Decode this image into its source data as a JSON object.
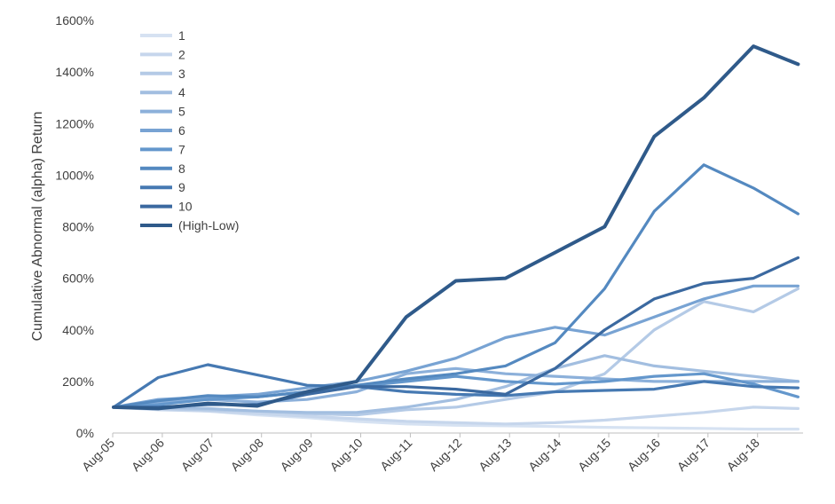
{
  "chart_data": {
    "type": "line",
    "title": "",
    "xlabel": "",
    "ylabel": "Cumulative Abnormal (alpha) Return",
    "x_tick_labels": [
      "Aug-05",
      "Aug-06",
      "Aug-07",
      "Aug-08",
      "Aug-09",
      "Aug-10",
      "Aug-11",
      "Aug-12",
      "Aug-13",
      "Aug-14",
      "Aug-15",
      "Aug-16",
      "Aug-17",
      "Aug-18"
    ],
    "y_tick_labels": [
      "0%",
      "200%",
      "400%",
      "600%",
      "800%",
      "1000%",
      "1200%",
      "1400%",
      "1600%"
    ],
    "ylim": [
      0,
      1600
    ],
    "xlim": [
      2005.583,
      2019.5
    ],
    "grid": false,
    "legend_position": "top-left",
    "series": [
      {
        "name": "1",
        "color": "#d6e2f2",
        "points": [
          [
            2005.6,
            100
          ],
          [
            2006.5,
            95
          ],
          [
            2007.5,
            85
          ],
          [
            2008.5,
            70
          ],
          [
            2009.5,
            60
          ],
          [
            2010.5,
            45
          ],
          [
            2011.5,
            35
          ],
          [
            2012.5,
            30
          ],
          [
            2013.5,
            28
          ],
          [
            2014.5,
            25
          ],
          [
            2015.5,
            22
          ],
          [
            2016.5,
            20
          ],
          [
            2017.5,
            18
          ],
          [
            2018.5,
            15
          ],
          [
            2019.4,
            15
          ]
        ]
      },
      {
        "name": "2",
        "color": "#c6d6ec",
        "points": [
          [
            2005.6,
            100
          ],
          [
            2006.5,
            90
          ],
          [
            2007.5,
            85
          ],
          [
            2008.5,
            75
          ],
          [
            2009.5,
            65
          ],
          [
            2010.5,
            55
          ],
          [
            2011.5,
            45
          ],
          [
            2012.5,
            40
          ],
          [
            2013.5,
            35
          ],
          [
            2014.5,
            40
          ],
          [
            2015.5,
            50
          ],
          [
            2016.5,
            65
          ],
          [
            2017.5,
            80
          ],
          [
            2018.5,
            100
          ],
          [
            2019.4,
            95
          ]
        ]
      },
      {
        "name": "3",
        "color": "#b4cae6",
        "points": [
          [
            2005.6,
            100
          ],
          [
            2006.5,
            95
          ],
          [
            2007.5,
            90
          ],
          [
            2008.5,
            85
          ],
          [
            2009.5,
            75
          ],
          [
            2010.5,
            70
          ],
          [
            2011.5,
            90
          ],
          [
            2012.5,
            100
          ],
          [
            2013.5,
            130
          ],
          [
            2014.5,
            160
          ],
          [
            2015.5,
            230
          ],
          [
            2016.5,
            400
          ],
          [
            2017.5,
            510
          ],
          [
            2018.5,
            470
          ],
          [
            2019.4,
            560
          ]
        ]
      },
      {
        "name": "4",
        "color": "#a2bee0",
        "points": [
          [
            2005.6,
            100
          ],
          [
            2006.5,
            100
          ],
          [
            2007.5,
            95
          ],
          [
            2008.5,
            85
          ],
          [
            2009.5,
            80
          ],
          [
            2010.5,
            80
          ],
          [
            2011.5,
            100
          ],
          [
            2012.5,
            130
          ],
          [
            2013.5,
            180
          ],
          [
            2014.5,
            250
          ],
          [
            2015.5,
            300
          ],
          [
            2016.5,
            260
          ],
          [
            2017.5,
            240
          ],
          [
            2018.5,
            220
          ],
          [
            2019.4,
            200
          ]
        ]
      },
      {
        "name": "5",
        "color": "#8cb0da",
        "points": [
          [
            2005.6,
            100
          ],
          [
            2006.5,
            120
          ],
          [
            2007.5,
            130
          ],
          [
            2008.5,
            120
          ],
          [
            2009.5,
            130
          ],
          [
            2010.5,
            160
          ],
          [
            2011.5,
            230
          ],
          [
            2012.5,
            250
          ],
          [
            2013.5,
            230
          ],
          [
            2014.5,
            220
          ],
          [
            2015.5,
            210
          ],
          [
            2016.5,
            200
          ],
          [
            2017.5,
            200
          ],
          [
            2018.5,
            200
          ],
          [
            2019.4,
            200
          ]
        ]
      },
      {
        "name": "6",
        "color": "#78a3d3",
        "points": [
          [
            2005.6,
            100
          ],
          [
            2006.5,
            130
          ],
          [
            2007.5,
            140
          ],
          [
            2008.5,
            150
          ],
          [
            2009.5,
            175
          ],
          [
            2010.5,
            200
          ],
          [
            2011.5,
            240
          ],
          [
            2012.5,
            290
          ],
          [
            2013.5,
            370
          ],
          [
            2014.5,
            410
          ],
          [
            2015.5,
            380
          ],
          [
            2016.5,
            450
          ],
          [
            2017.5,
            520
          ],
          [
            2018.5,
            570
          ],
          [
            2019.4,
            570
          ]
        ]
      },
      {
        "name": "7",
        "color": "#6497cc",
        "points": [
          [
            2005.6,
            100
          ],
          [
            2006.5,
            110
          ],
          [
            2007.5,
            130
          ],
          [
            2008.5,
            140
          ],
          [
            2009.5,
            160
          ],
          [
            2010.5,
            180
          ],
          [
            2011.5,
            200
          ],
          [
            2012.5,
            220
          ],
          [
            2013.5,
            200
          ],
          [
            2014.5,
            190
          ],
          [
            2015.5,
            200
          ],
          [
            2016.5,
            220
          ],
          [
            2017.5,
            230
          ],
          [
            2018.5,
            190
          ],
          [
            2019.4,
            140
          ]
        ]
      },
      {
        "name": "8",
        "color": "#5489c0",
        "points": [
          [
            2005.6,
            100
          ],
          [
            2006.5,
            125
          ],
          [
            2007.5,
            145
          ],
          [
            2008.5,
            140
          ],
          [
            2009.5,
            160
          ],
          [
            2010.5,
            185
          ],
          [
            2011.5,
            210
          ],
          [
            2012.5,
            230
          ],
          [
            2013.5,
            260
          ],
          [
            2014.5,
            350
          ],
          [
            2015.5,
            560
          ],
          [
            2016.5,
            860
          ],
          [
            2017.5,
            1040
          ],
          [
            2018.5,
            950
          ],
          [
            2019.4,
            850
          ]
        ]
      },
      {
        "name": "9",
        "color": "#4679b2",
        "points": [
          [
            2005.6,
            100
          ],
          [
            2006.5,
            215
          ],
          [
            2007.5,
            265
          ],
          [
            2008.5,
            225
          ],
          [
            2009.5,
            185
          ],
          [
            2010.5,
            180
          ],
          [
            2011.5,
            160
          ],
          [
            2012.5,
            150
          ],
          [
            2013.5,
            145
          ],
          [
            2014.5,
            160
          ],
          [
            2015.5,
            165
          ],
          [
            2016.5,
            170
          ],
          [
            2017.5,
            200
          ],
          [
            2018.5,
            180
          ],
          [
            2019.4,
            175
          ]
        ]
      },
      {
        "name": "10",
        "color": "#3b69a0",
        "points": [
          [
            2005.6,
            100
          ],
          [
            2006.5,
            100
          ],
          [
            2007.5,
            110
          ],
          [
            2008.5,
            110
          ],
          [
            2009.5,
            150
          ],
          [
            2010.5,
            180
          ],
          [
            2011.5,
            180
          ],
          [
            2012.5,
            170
          ],
          [
            2013.5,
            150
          ],
          [
            2014.5,
            250
          ],
          [
            2015.5,
            400
          ],
          [
            2016.5,
            520
          ],
          [
            2017.5,
            580
          ],
          [
            2018.5,
            600
          ],
          [
            2019.4,
            680
          ]
        ]
      },
      {
        "name": "(High-Low)",
        "color": "#2f5a8a",
        "points": [
          [
            2005.6,
            100
          ],
          [
            2006.5,
            95
          ],
          [
            2007.5,
            115
          ],
          [
            2008.5,
            105
          ],
          [
            2009.5,
            160
          ],
          [
            2010.5,
            200
          ],
          [
            2011.5,
            450
          ],
          [
            2012.5,
            590
          ],
          [
            2013.5,
            600
          ],
          [
            2014.5,
            700
          ],
          [
            2015.5,
            800
          ],
          [
            2016.5,
            1150
          ],
          [
            2017.5,
            1300
          ],
          [
            2018.5,
            1500
          ],
          [
            2019.4,
            1430
          ]
        ]
      }
    ]
  }
}
